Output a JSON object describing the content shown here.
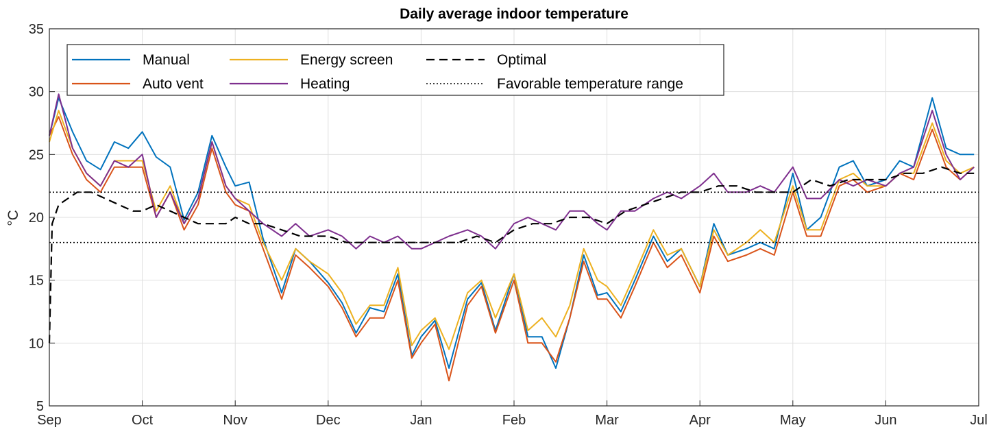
{
  "chart_data": {
    "type": "line",
    "title": "Daily average indoor temperature",
    "xlabel": "",
    "ylabel": "°C",
    "xlim": [
      "Sep 1",
      "Jul 1"
    ],
    "ylim": [
      5,
      35
    ],
    "grid": true,
    "legend_position": "top-left",
    "x_tick_labels": [
      "Sep",
      "Oct",
      "Nov",
      "Dec",
      "Jan",
      "Feb",
      "Mar",
      "Apr",
      "May",
      "Jun",
      "Jul"
    ],
    "y_ticks": [
      5,
      10,
      15,
      20,
      25,
      30,
      35
    ],
    "x_unit": "month",
    "series": [
      {
        "name": "Manual",
        "color": "#0072bd",
        "style": "solid",
        "x": [
          0,
          0.1,
          0.25,
          0.4,
          0.55,
          0.7,
          0.85,
          1.0,
          1.15,
          1.3,
          1.45,
          1.6,
          1.75,
          1.9,
          2.0,
          2.15,
          2.3,
          2.5,
          2.65,
          2.8,
          3.0,
          3.15,
          3.3,
          3.45,
          3.6,
          3.75,
          3.9,
          4.0,
          4.15,
          4.3,
          4.5,
          4.65,
          4.8,
          5.0,
          5.15,
          5.3,
          5.45,
          5.6,
          5.75,
          5.9,
          6.0,
          6.15,
          6.3,
          6.5,
          6.65,
          6.8,
          7.0,
          7.15,
          7.3,
          7.5,
          7.65,
          7.8,
          8.0,
          8.15,
          8.3,
          8.5,
          8.65,
          8.8,
          9.0,
          9.15,
          9.3,
          9.5,
          9.65,
          9.8,
          9.95
        ],
        "y": [
          26.5,
          29.5,
          26.8,
          24.5,
          23.8,
          26.0,
          25.5,
          26.8,
          24.8,
          24.0,
          19.8,
          22.0,
          26.5,
          24.0,
          22.5,
          22.8,
          18.3,
          14.0,
          17.5,
          16.5,
          14.8,
          13.2,
          10.8,
          12.8,
          12.5,
          15.5,
          9.0,
          10.5,
          11.8,
          8.0,
          13.5,
          14.8,
          11.0,
          15.5,
          10.5,
          10.5,
          8.0,
          12.0,
          17.0,
          13.8,
          14.0,
          12.5,
          15.0,
          18.5,
          16.5,
          17.5,
          14.5,
          19.5,
          17.0,
          17.5,
          18.0,
          17.5,
          23.5,
          19.0,
          20.0,
          24.0,
          24.5,
          22.5,
          23.0,
          24.5,
          24.0,
          29.5,
          25.5,
          25.0,
          25.0
        ]
      },
      {
        "name": "Auto vent",
        "color": "#d95319",
        "style": "solid",
        "x": [
          0,
          0.1,
          0.25,
          0.4,
          0.55,
          0.7,
          0.85,
          1.0,
          1.15,
          1.3,
          1.45,
          1.6,
          1.75,
          1.9,
          2.0,
          2.15,
          2.3,
          2.5,
          2.65,
          2.8,
          3.0,
          3.15,
          3.3,
          3.45,
          3.6,
          3.75,
          3.9,
          4.0,
          4.15,
          4.3,
          4.5,
          4.65,
          4.8,
          5.0,
          5.15,
          5.3,
          5.45,
          5.6,
          5.75,
          5.9,
          6.0,
          6.15,
          6.3,
          6.5,
          6.65,
          6.8,
          7.0,
          7.15,
          7.3,
          7.5,
          7.65,
          7.8,
          8.0,
          8.15,
          8.3,
          8.5,
          8.65,
          8.8,
          9.0,
          9.15,
          9.3,
          9.5,
          9.65,
          9.8,
          9.95
        ],
        "y": [
          26.5,
          28.0,
          25.0,
          23.0,
          22.0,
          24.0,
          24.0,
          24.0,
          20.0,
          22.0,
          19.0,
          21.0,
          25.5,
          22.0,
          21.0,
          20.5,
          17.5,
          13.5,
          17.0,
          16.0,
          14.5,
          12.8,
          10.5,
          12.0,
          12.0,
          15.0,
          8.8,
          10.0,
          11.5,
          7.0,
          13.0,
          14.5,
          10.8,
          15.0,
          10.0,
          10.0,
          8.5,
          12.0,
          16.5,
          13.5,
          13.5,
          12.0,
          14.5,
          18.0,
          16.0,
          17.0,
          14.0,
          18.5,
          16.5,
          17.0,
          17.5,
          17.0,
          22.0,
          18.5,
          18.5,
          22.5,
          23.0,
          22.0,
          22.5,
          23.5,
          23.0,
          27.0,
          24.0,
          23.0,
          24.0
        ]
      },
      {
        "name": "Energy screen",
        "color": "#edb120",
        "style": "solid",
        "x": [
          0,
          0.1,
          0.25,
          0.4,
          0.55,
          0.7,
          0.85,
          1.0,
          1.15,
          1.3,
          1.45,
          1.6,
          1.75,
          1.9,
          2.0,
          2.15,
          2.3,
          2.5,
          2.65,
          2.8,
          3.0,
          3.15,
          3.3,
          3.45,
          3.6,
          3.75,
          3.9,
          4.0,
          4.15,
          4.3,
          4.5,
          4.65,
          4.8,
          5.0,
          5.15,
          5.3,
          5.45,
          5.6,
          5.75,
          5.9,
          6.0,
          6.15,
          6.3,
          6.5,
          6.65,
          6.8,
          7.0,
          7.15,
          7.3,
          7.5,
          7.65,
          7.8,
          8.0,
          8.15,
          8.3,
          8.5,
          8.65,
          8.8,
          9.0,
          9.15,
          9.3,
          9.5,
          9.65,
          9.8,
          9.95
        ],
        "y": [
          26.0,
          28.5,
          25.5,
          23.5,
          22.5,
          24.5,
          24.5,
          24.5,
          20.5,
          22.5,
          19.5,
          21.5,
          26.0,
          22.5,
          21.5,
          21.0,
          18.0,
          15.0,
          17.5,
          16.5,
          15.5,
          14.0,
          11.5,
          13.0,
          13.0,
          16.0,
          9.8,
          11.0,
          12.0,
          9.5,
          14.0,
          15.0,
          12.0,
          15.5,
          11.0,
          12.0,
          10.5,
          13.0,
          17.5,
          15.0,
          14.5,
          13.0,
          15.5,
          19.0,
          17.0,
          17.5,
          14.5,
          19.0,
          17.0,
          18.0,
          19.0,
          18.0,
          22.5,
          19.0,
          19.0,
          23.0,
          23.5,
          22.5,
          22.5,
          23.5,
          23.5,
          27.5,
          24.5,
          23.5,
          24.0
        ]
      },
      {
        "name": "Heating",
        "color": "#7e2f8e",
        "style": "solid",
        "x": [
          0,
          0.1,
          0.25,
          0.4,
          0.55,
          0.7,
          0.85,
          1.0,
          1.15,
          1.3,
          1.45,
          1.6,
          1.75,
          1.9,
          2.0,
          2.15,
          2.3,
          2.5,
          2.65,
          2.8,
          3.0,
          3.15,
          3.3,
          3.45,
          3.6,
          3.75,
          3.9,
          4.0,
          4.15,
          4.3,
          4.5,
          4.65,
          4.8,
          5.0,
          5.15,
          5.3,
          5.45,
          5.6,
          5.75,
          5.9,
          6.0,
          6.15,
          6.3,
          6.5,
          6.65,
          6.8,
          7.0,
          7.15,
          7.3,
          7.5,
          7.65,
          7.8,
          8.0,
          8.15,
          8.3,
          8.5,
          8.65,
          8.8,
          9.0,
          9.15,
          9.3,
          9.5,
          9.65,
          9.8,
          9.95
        ],
        "y": [
          26.5,
          29.8,
          25.5,
          23.5,
          22.5,
          24.5,
          24.0,
          25.0,
          20.0,
          22.0,
          19.5,
          21.5,
          26.0,
          22.5,
          21.5,
          20.5,
          19.5,
          18.5,
          19.5,
          18.5,
          19.0,
          18.5,
          17.5,
          18.5,
          18.0,
          18.5,
          17.5,
          17.5,
          18.0,
          18.5,
          19.0,
          18.5,
          17.5,
          19.5,
          20.0,
          19.5,
          19.0,
          20.5,
          20.5,
          19.5,
          19.0,
          20.5,
          20.5,
          21.5,
          22.0,
          21.5,
          22.5,
          23.5,
          22.0,
          22.0,
          22.5,
          22.0,
          24.0,
          21.5,
          21.5,
          23.0,
          22.5,
          23.0,
          22.5,
          23.5,
          24.0,
          28.5,
          25.0,
          23.0,
          24.0
        ]
      },
      {
        "name": "Optimal",
        "color": "#000000",
        "style": "dashed",
        "x": [
          0,
          0.03,
          0.1,
          0.2,
          0.3,
          0.45,
          0.6,
          0.75,
          0.9,
          1.0,
          1.15,
          1.3,
          1.45,
          1.6,
          1.75,
          1.9,
          2.0,
          2.15,
          2.3,
          2.5,
          2.7,
          2.9,
          3.0,
          3.2,
          3.4,
          3.6,
          3.8,
          4.0,
          4.2,
          4.4,
          4.6,
          4.8,
          5.0,
          5.2,
          5.4,
          5.6,
          5.8,
          6.0,
          6.2,
          6.4,
          6.6,
          6.8,
          7.0,
          7.2,
          7.4,
          7.6,
          7.8,
          8.0,
          8.2,
          8.4,
          8.6,
          8.8,
          9.0,
          9.2,
          9.4,
          9.6,
          9.8,
          9.95
        ],
        "y": [
          10.0,
          19.5,
          21.0,
          21.5,
          22.0,
          22.0,
          21.5,
          21.0,
          20.5,
          20.5,
          21.0,
          20.5,
          20.0,
          19.5,
          19.5,
          19.5,
          20.0,
          19.5,
          19.5,
          19.0,
          18.5,
          18.5,
          18.5,
          18.0,
          18.0,
          18.0,
          18.0,
          18.0,
          18.0,
          18.0,
          18.5,
          18.0,
          19.0,
          19.5,
          19.5,
          20.0,
          20.0,
          19.5,
          20.5,
          21.0,
          21.5,
          22.0,
          22.0,
          22.5,
          22.5,
          22.0,
          22.0,
          22.0,
          23.0,
          22.5,
          23.0,
          23.0,
          23.0,
          23.5,
          23.5,
          24.0,
          23.5,
          23.5
        ]
      },
      {
        "name": "Favorable temperature range",
        "color": "#000000",
        "style": "dotted",
        "bands": [
          18,
          22
        ]
      }
    ]
  }
}
